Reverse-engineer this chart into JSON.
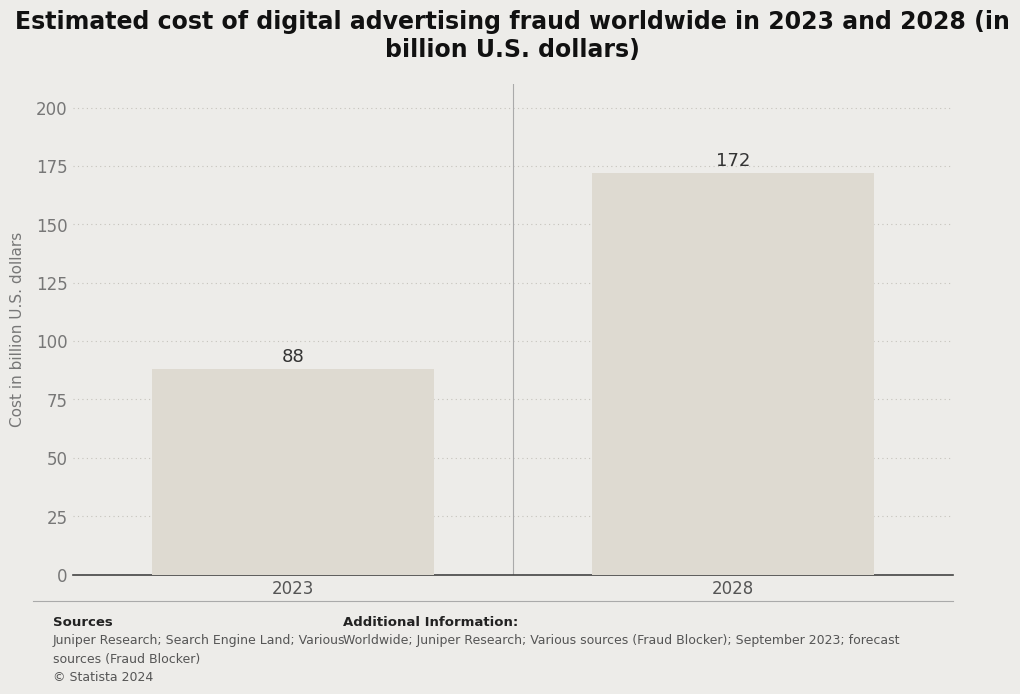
{
  "title": "Estimated cost of digital advertising fraud worldwide in 2023 and 2028 (in\nbillion U.S. dollars)",
  "categories": [
    "2023",
    "2028"
  ],
  "values": [
    88,
    172
  ],
  "bar_color": "#dedad1",
  "bar_edge_color": "#dedad1",
  "ylabel": "Cost in billion U.S. dollars",
  "ylim": [
    0,
    210
  ],
  "yticks": [
    0,
    25,
    50,
    75,
    100,
    125,
    150,
    175,
    200
  ],
  "background_color": "#edece9",
  "plot_bg_color": "#edece9",
  "grid_color": "#c5c3bc",
  "title_fontsize": 17,
  "label_fontsize": 11,
  "tick_fontsize": 12,
  "value_label_fontsize": 13,
  "divider_color": "#aaaaaa",
  "axis_color": "#444444",
  "tick_label_color": "#555555",
  "ytick_label_color": "#777777",
  "value_text_color": "#333333",
  "sources_bold": "Sources",
  "sources_text": "Juniper Research; Search Engine Land; Various\nsources (Fraud Blocker)\n© Statista 2024",
  "additional_info_title": "Additional Information:",
  "additional_info_text": "Worldwide; Juniper Research; Various sources (Fraud Blocker); September 2023; forecast"
}
